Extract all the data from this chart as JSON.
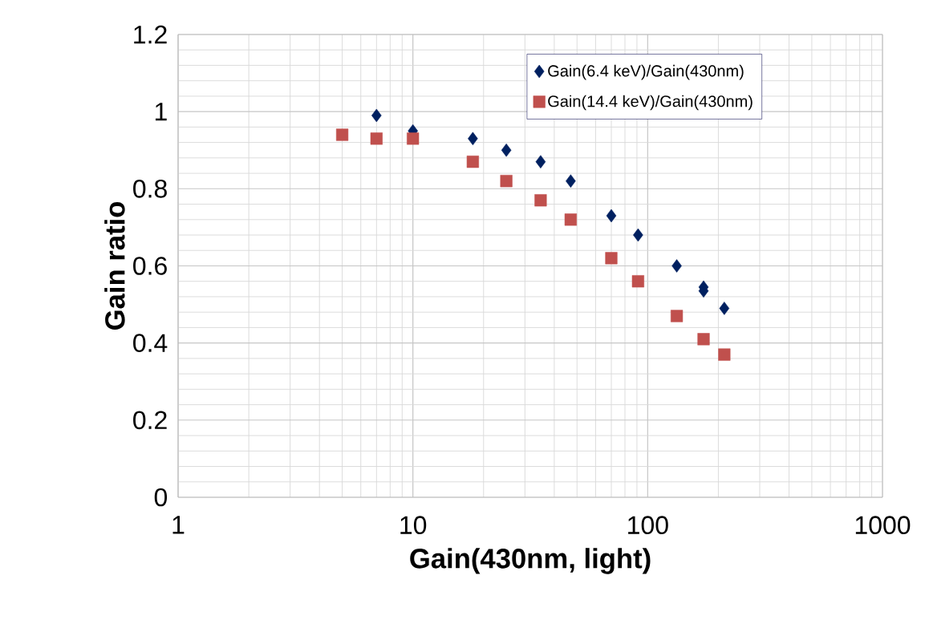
{
  "chart_data": {
    "type": "scatter",
    "xlabel": "Gain(430nm, light)",
    "ylabel": "Gain ratio",
    "log": "x",
    "xlim": [
      1,
      1000
    ],
    "xticks": [
      1,
      10,
      100,
      1000
    ],
    "ylim": [
      0,
      1.2
    ],
    "yticks": [
      0,
      0.2,
      0.4,
      0.6,
      0.8,
      1,
      1.2
    ],
    "grid": true,
    "legend": "top right",
    "series": [
      {
        "name": "Gain(6.4 keV)/Gain(430nm)",
        "color": "#002060",
        "marker": "diamond",
        "x": [
          7,
          10,
          18,
          25,
          35,
          47,
          70,
          91,
          133,
          173,
          173,
          212
        ],
        "values": [
          0.99,
          0.95,
          0.93,
          0.9,
          0.87,
          0.82,
          0.73,
          0.68,
          0.6,
          0.545,
          0.535,
          0.49
        ]
      },
      {
        "name": "Gain(14.4 keV)/Gain(430nm)",
        "color": "#c0504d",
        "marker": "square",
        "x": [
          5,
          7,
          10,
          18,
          25,
          35,
          47,
          70,
          91,
          133,
          173,
          212
        ],
        "values": [
          0.94,
          0.93,
          0.93,
          0.87,
          0.82,
          0.77,
          0.72,
          0.62,
          0.56,
          0.47,
          0.41,
          0.37
        ]
      }
    ]
  }
}
